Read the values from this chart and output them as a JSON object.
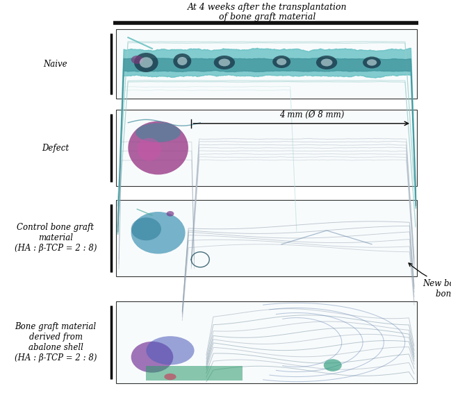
{
  "title_line1": "At 4 weeks after the transplantation",
  "title_line2": "of bone graft material",
  "row_labels": [
    "Naive",
    "Defect",
    "Control bone graft\nmaterial\n(HA : β-TCP = 2 : 8)",
    "Bone graft material\nderived from\nabalone shell\n(HA : β-TCP = 2 : 8)"
  ],
  "annotation_text": "New bone + transplanted\nbone graft material",
  "defect_annotation": "4 mm (Ø 8 mm)",
  "bg": "#ffffff",
  "black": "#000000",
  "title_color": "#000000",
  "annot_color": "#000000",
  "header_bar_color": "#111111",
  "title_fs": 9,
  "label_fs": 8.5,
  "annot_fs": 8.5,
  "defect_fs": 8.5
}
